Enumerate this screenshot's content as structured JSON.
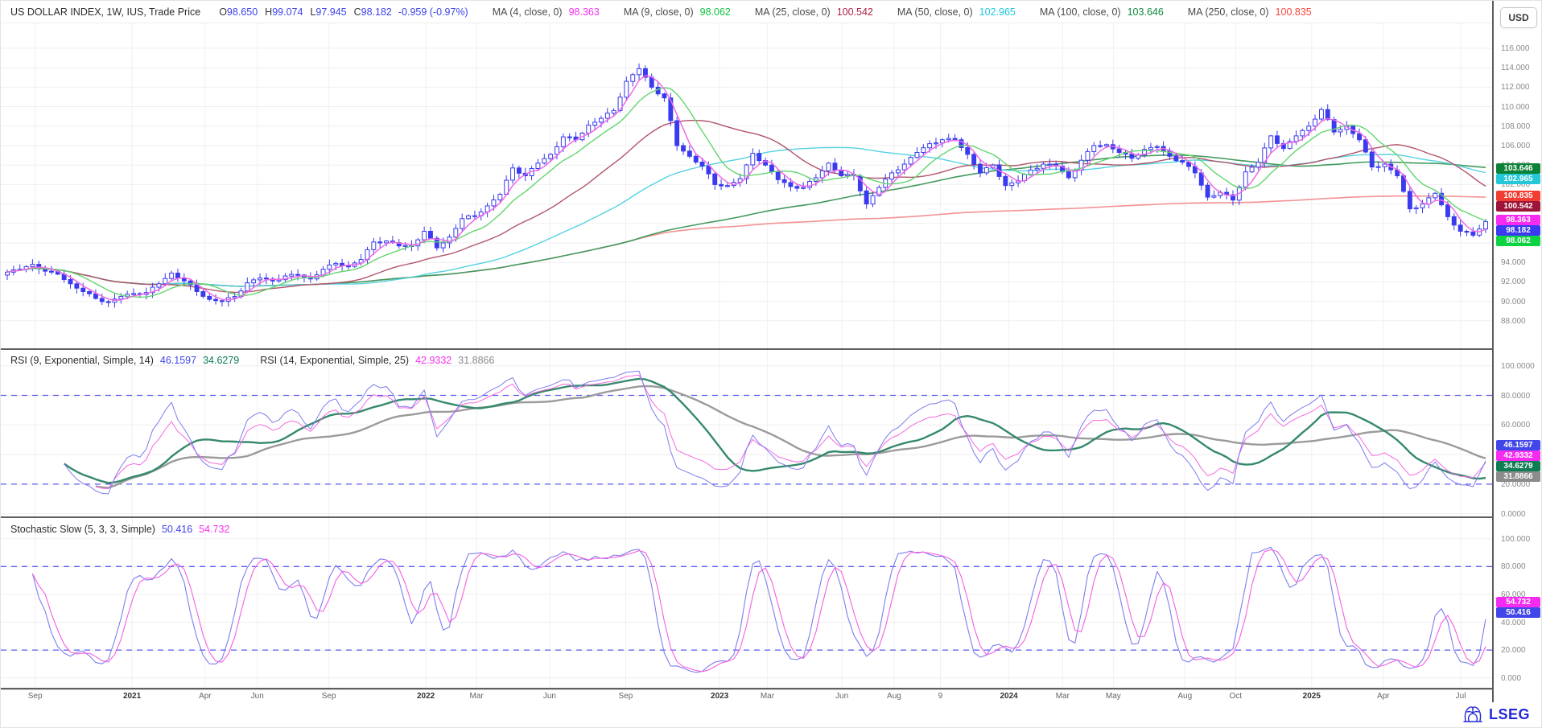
{
  "window": {
    "currency_button": "USD"
  },
  "header": {
    "title": "US DOLLAR INDEX, 1W, IUS, Trade Price",
    "ohlc": [
      {
        "k": "O",
        "v": "98.650"
      },
      {
        "k": "H",
        "v": "99.074"
      },
      {
        "k": "L",
        "v": "97.945"
      },
      {
        "k": "C",
        "v": "98.182"
      }
    ],
    "change": "-0.959 (-0.97%)",
    "ma_legend": [
      {
        "label": "MA (4, close, 0)",
        "value": "98.363",
        "color": "#f531f0"
      },
      {
        "label": "MA (9, close, 0)",
        "value": "98.062",
        "color": "#0bc53e"
      },
      {
        "label": "MA (25, close, 0)",
        "value": "100.542",
        "color": "#b01e45"
      },
      {
        "label": "MA (50, close, 0)",
        "value": "102.965",
        "color": "#1fc7d8"
      },
      {
        "label": "MA (100, close, 0)",
        "value": "103.646",
        "color": "#0f8a3c"
      },
      {
        "label": "MA (250, close, 0)",
        "value": "100.835",
        "color": "#f5483c"
      }
    ]
  },
  "price_axis": {
    "ticks": [
      "116.000",
      "114.000",
      "112.000",
      "110.000",
      "108.000",
      "106.000",
      "104.000",
      "102.000",
      "100.000",
      "98.000",
      "96.000",
      "94.000",
      "92.000",
      "90.000",
      "88.000"
    ],
    "tick_values": [
      116,
      114,
      112,
      110,
      108,
      106,
      104,
      102,
      100,
      98,
      96,
      94,
      92,
      90,
      88
    ],
    "labels": [
      {
        "text": "103.646",
        "value": 103.646,
        "bg": "#0c8236"
      },
      {
        "text": "102.965",
        "value": 102.965,
        "bg": "#25c8d6"
      },
      {
        "text": "100.835",
        "value": 100.835,
        "bg": "#f23d32"
      },
      {
        "text": "100.542",
        "value": 100.542,
        "bg": "#9c1437"
      },
      {
        "text": "98.363",
        "value": 98.363,
        "bg": "#f52bf0"
      },
      {
        "text": "98.182",
        "value": 98.182,
        "bg": "#3a3af0"
      },
      {
        "text": "98.062",
        "value": 98.062,
        "bg": "#0bd341"
      }
    ]
  },
  "rsi_panel": {
    "legend": [
      {
        "label": "RSI (9, Exponential, Simple, 14)",
        "values": [
          {
            "v": "46.1597",
            "color": "#4146e8"
          },
          {
            "v": "34.6279",
            "color": "#0e7d54"
          }
        ]
      },
      {
        "label": "RSI (14, Exponential, Simple, 25)",
        "values": [
          {
            "v": "42.9332",
            "color": "#f531f0"
          },
          {
            "v": "31.8866",
            "color": "#8a8a8a"
          }
        ]
      }
    ],
    "ticks": [
      "100.0000",
      "80.0000",
      "60.0000",
      "40.0000",
      "20.0000",
      "0.0000"
    ],
    "tick_values": [
      100,
      80,
      60,
      40,
      20,
      0
    ],
    "labels": [
      {
        "text": "46.1597",
        "value": 46.1597,
        "bg": "#4146e8"
      },
      {
        "text": "42.9332",
        "value": 42.9332,
        "bg": "#f52bf0"
      },
      {
        "text": "34.6279",
        "value": 34.6279,
        "bg": "#0e7d54"
      },
      {
        "text": "31.8866",
        "value": 31.8866,
        "bg": "#8c8c8c"
      }
    ]
  },
  "stoch_panel": {
    "legend_label": "Stochastic Slow (5, 3, 3, Simple)",
    "values": [
      {
        "v": "50.416",
        "color": "#4146e8"
      },
      {
        "v": "54.732",
        "color": "#f531f0"
      }
    ],
    "ticks": [
      "100.000",
      "80.000",
      "60.000",
      "40.000",
      "20.000",
      "0.000"
    ],
    "tick_values": [
      100,
      80,
      60,
      40,
      20,
      0
    ],
    "labels": [
      {
        "text": "54.732",
        "value": 54.732,
        "bg": "#f52bf0"
      },
      {
        "text": "50.416",
        "value": 50.416,
        "bg": "#4146e8"
      }
    ]
  },
  "x_axis": [
    {
      "label": "Sep",
      "pos": 0.023
    },
    {
      "label": "2021",
      "pos": 0.088,
      "bold": true
    },
    {
      "label": "Apr",
      "pos": 0.137
    },
    {
      "label": "Jun",
      "pos": 0.172
    },
    {
      "label": "Sep",
      "pos": 0.22
    },
    {
      "label": "2022",
      "pos": 0.285,
      "bold": true
    },
    {
      "label": "Mar",
      "pos": 0.319
    },
    {
      "label": "Jun",
      "pos": 0.368
    },
    {
      "label": "Sep",
      "pos": 0.419
    },
    {
      "label": "2023",
      "pos": 0.482,
      "bold": true
    },
    {
      "label": "Mar",
      "pos": 0.514
    },
    {
      "label": "Jun",
      "pos": 0.564
    },
    {
      "label": "Aug",
      "pos": 0.599
    },
    {
      "label": "9",
      "pos": 0.63
    },
    {
      "label": "2024",
      "pos": 0.676,
      "bold": true
    },
    {
      "label": "Mar",
      "pos": 0.712
    },
    {
      "label": "May",
      "pos": 0.746
    },
    {
      "label": "Aug",
      "pos": 0.794
    },
    {
      "label": "Oct",
      "pos": 0.828
    },
    {
      "label": "2025",
      "pos": 0.879,
      "bold": true
    },
    {
      "label": "Apr",
      "pos": 0.927
    },
    {
      "label": "Jul",
      "pos": 0.979
    }
  ],
  "footer": {
    "logo_text": "LSEG"
  },
  "chart_data": [
    {
      "type": "candlestick",
      "title": "US DOLLAR INDEX, 1W, IUS, Trade Price",
      "interval": "weekly (approx bi-weekly close samples, Sep 2020 - Jul 2025)",
      "ylim": [
        85.1,
        118.6
      ],
      "yticks": [
        88,
        90,
        92,
        94,
        96,
        98,
        100,
        102,
        104,
        106,
        108,
        110,
        112,
        114,
        116
      ],
      "ohlc_last": {
        "open": 98.65,
        "high": 99.074,
        "low": 97.945,
        "close": 98.182,
        "change": -0.959,
        "change_pct": -0.97
      },
      "closes": [
        93.0,
        93.3,
        93.8,
        93.1,
        92.8,
        91.8,
        91.0,
        90.3,
        89.9,
        90.5,
        90.8,
        90.9,
        91.8,
        92.9,
        92.1,
        91.0,
        90.2,
        90.0,
        90.5,
        91.9,
        92.4,
        92.1,
        92.6,
        92.7,
        92.3,
        93.3,
        93.9,
        93.6,
        94.3,
        96.1,
        96.2,
        95.7,
        95.7,
        97.2,
        95.5,
        96.6,
        98.5,
        98.8,
        99.8,
        101.0,
        103.7,
        102.9,
        104.2,
        105.1,
        106.9,
        106.6,
        108.1,
        108.8,
        109.6,
        112.6,
        113.9,
        112.0,
        110.9,
        106.0,
        104.9,
        103.9,
        102.0,
        101.9,
        102.6,
        105.2,
        104.0,
        102.5,
        101.8,
        101.7,
        102.7,
        104.2,
        102.9,
        102.9,
        100.0,
        101.7,
        103.2,
        104.1,
        105.3,
        106.2,
        106.6,
        106.6,
        105.1,
        103.2,
        104.0,
        101.9,
        102.4,
        103.5,
        104.1,
        103.9,
        102.7,
        104.5,
        106.0,
        106.1,
        105.3,
        104.7,
        105.6,
        105.9,
        104.9,
        104.3,
        103.2,
        100.7,
        101.2,
        100.4,
        103.3,
        104.3,
        107.0,
        105.7,
        107.0,
        108.0,
        109.7,
        107.4,
        108.0,
        106.6,
        103.8,
        104.1,
        102.9,
        99.5,
        100.0,
        101.1,
        98.7,
        97.2,
        96.8,
        98.182
      ],
      "overlays": [
        {
          "name": "MA4",
          "period": 4,
          "color": "#f06ae6",
          "last": 98.363
        },
        {
          "name": "MA9",
          "period": 9,
          "color": "#63d56f",
          "last": 98.062
        },
        {
          "name": "MA25",
          "period": 25,
          "color": "#b2556a",
          "last": 100.542
        },
        {
          "name": "MA50",
          "period": 50,
          "color": "#54d2e2",
          "last": 102.965
        },
        {
          "name": "MA100",
          "period": 100,
          "color": "#449a5f",
          "last": 103.646
        },
        {
          "name": "MA250",
          "period": 250,
          "color": "#f49292",
          "last": 100.835
        }
      ],
      "candle_up_color": "#ffffff",
      "candle_down_color": "#3a3af0",
      "candle_border_color": "#3a3af0"
    },
    {
      "type": "line",
      "name": "RSI",
      "params": "RSI (9, Exponential, Simple, 14) / RSI (14, Exponential, Simple, 25)",
      "ylim": [
        0,
        100
      ],
      "bands": [
        80,
        20
      ],
      "derived_from": "chart_data[0].closes",
      "series": [
        {
          "name": "RSI 9",
          "rsi_period": 9,
          "color": "#7d7df0",
          "width": 1,
          "last": 46.1597
        },
        {
          "name": "RSI 9 smoothed (14)",
          "ma_of": "RSI 9",
          "ma_period": 14,
          "color": "#35896d",
          "width": 2.4,
          "last": 34.6279
        },
        {
          "name": "RSI 14",
          "rsi_period": 14,
          "color": "#f56ae0",
          "width": 1,
          "last": 42.9332
        },
        {
          "name": "RSI 14 smoothed (25)",
          "ma_of": "RSI 14",
          "ma_period": 25,
          "color": "#9b9b9b",
          "width": 2.4,
          "last": 31.8866
        }
      ]
    },
    {
      "type": "line",
      "name": "Stochastic Slow",
      "params": "(5, 3, 3, Simple)",
      "ylim": [
        0,
        100
      ],
      "bands": [
        80,
        20
      ],
      "derived_from": "chart_data[0].closes",
      "series": [
        {
          "name": "%K",
          "color": "#7d7df0",
          "width": 1.1,
          "last": 50.416
        },
        {
          "name": "%D",
          "color": "#f55fe0",
          "width": 1.1,
          "last": 54.732
        }
      ]
    }
  ]
}
